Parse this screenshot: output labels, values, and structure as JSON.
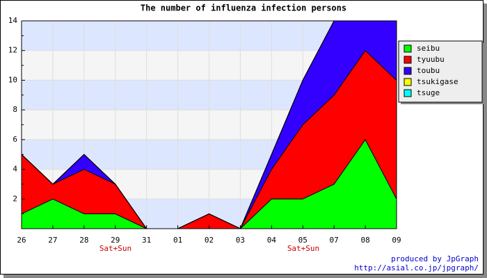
{
  "chart_data": {
    "type": "stacked_area",
    "title": "The number of influenza infection persons",
    "categories": [
      "26",
      "27",
      "28",
      "29",
      "31",
      "01",
      "02",
      "03",
      "04",
      "05",
      "07",
      "08",
      "09"
    ],
    "series": [
      {
        "name": "seibu",
        "color": "#00ff00",
        "values": [
          1,
          2,
          1,
          1,
          0,
          0,
          0,
          0,
          2,
          2,
          3,
          6,
          2
        ]
      },
      {
        "name": "tyuubu",
        "color": "#ff0000",
        "values": [
          4,
          1,
          3,
          2,
          0,
          0,
          1,
          0,
          2,
          5,
          6,
          6,
          8
        ]
      },
      {
        "name": "toubu",
        "color": "#3300ff",
        "values": [
          0,
          0,
          1,
          0,
          0,
          0,
          0,
          0,
          1,
          3,
          5,
          2,
          4
        ]
      },
      {
        "name": "tsukigase",
        "color": "#ffff00",
        "values": [
          0,
          0,
          0,
          0,
          0,
          0,
          0,
          0,
          0,
          0,
          0,
          0,
          0
        ]
      },
      {
        "name": "tsuge",
        "color": "#00ffff",
        "values": [
          0,
          0,
          0,
          0,
          0,
          0,
          0,
          0,
          0,
          0,
          0,
          0,
          0
        ]
      }
    ],
    "ylim": [
      0,
      14
    ],
    "yticks": [
      2,
      4,
      6,
      8,
      10,
      12,
      14
    ],
    "grid": true,
    "legend": "right",
    "annotations": [
      "Sat+Sun",
      "Sat+Sun"
    ],
    "footer": [
      "produced by JpGraph",
      "http://asial.co.jp/jpgraph/"
    ]
  }
}
